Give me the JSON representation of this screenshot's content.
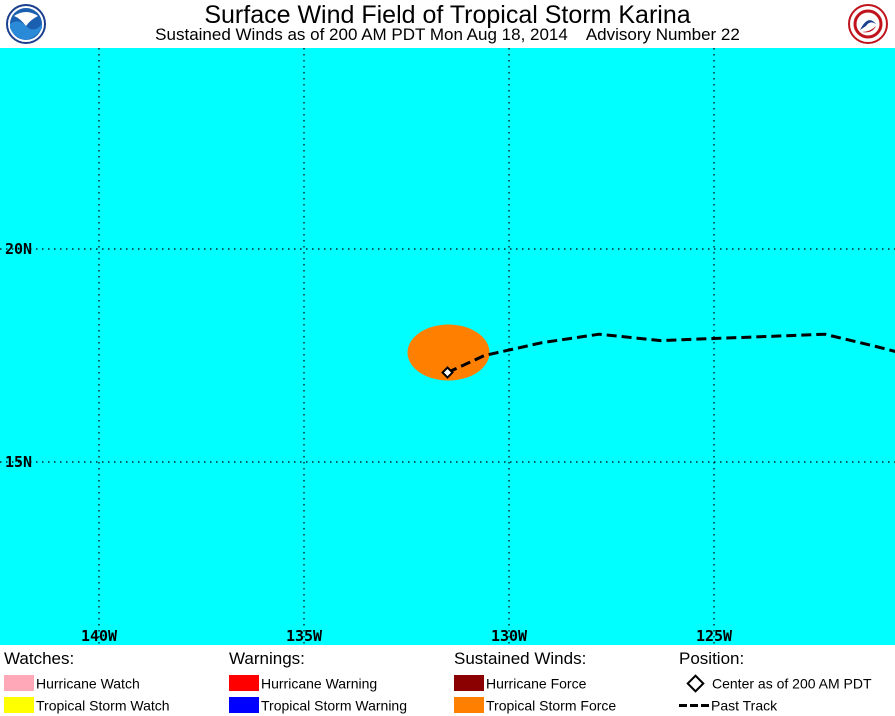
{
  "header": {
    "title": "Surface Wind Field of Tropical Storm Karina",
    "subtitle_left": "Sustained Winds as of 200 AM PDT Mon Aug 18, 2014",
    "subtitle_right": "Advisory Number 22"
  },
  "map": {
    "ocean_color": "#00ffff",
    "grid": true,
    "longitude_labels": [
      "140W",
      "135W",
      "130W",
      "125W"
    ],
    "latitude_labels": [
      "20N",
      "15N"
    ],
    "storm_center": {
      "lon": -131.5,
      "lat": 17.1
    },
    "wind_field": {
      "type": "Tropical Storm Force",
      "color": "#ff8000"
    },
    "past_track": [
      {
        "lon": -131.5,
        "lat": 17.1
      },
      {
        "lon": -130.6,
        "lat": 17.5
      },
      {
        "lon": -129.2,
        "lat": 17.8
      },
      {
        "lon": -127.8,
        "lat": 18.0
      },
      {
        "lon": -126.3,
        "lat": 17.85
      },
      {
        "lon": -125.0,
        "lat": 17.9
      },
      {
        "lon": -123.6,
        "lat": 17.95
      },
      {
        "lon": -122.3,
        "lat": 18.0
      },
      {
        "lon": -121.0,
        "lat": 17.7
      },
      {
        "lon": -120.0,
        "lat": 17.45
      }
    ]
  },
  "legend": {
    "watches": {
      "heading": "Watches:",
      "items": [
        {
          "label": "Hurricane Watch",
          "color": "#ffa8b8"
        },
        {
          "label": "Tropical Storm Watch",
          "color": "#ffff00"
        }
      ]
    },
    "warnings": {
      "heading": "Warnings:",
      "items": [
        {
          "label": "Hurricane Warning",
          "color": "#ff0000"
        },
        {
          "label": "Tropical Storm Warning",
          "color": "#0000ff"
        }
      ]
    },
    "winds": {
      "heading": "Sustained Winds:",
      "items": [
        {
          "label": "Hurricane Force",
          "color": "#8b0000"
        },
        {
          "label": "Tropical Storm Force",
          "color": "#ff8000"
        }
      ]
    },
    "position": {
      "heading": "Position:",
      "center_label": "Center as of 200 AM PDT",
      "track_label": "Past Track"
    }
  }
}
